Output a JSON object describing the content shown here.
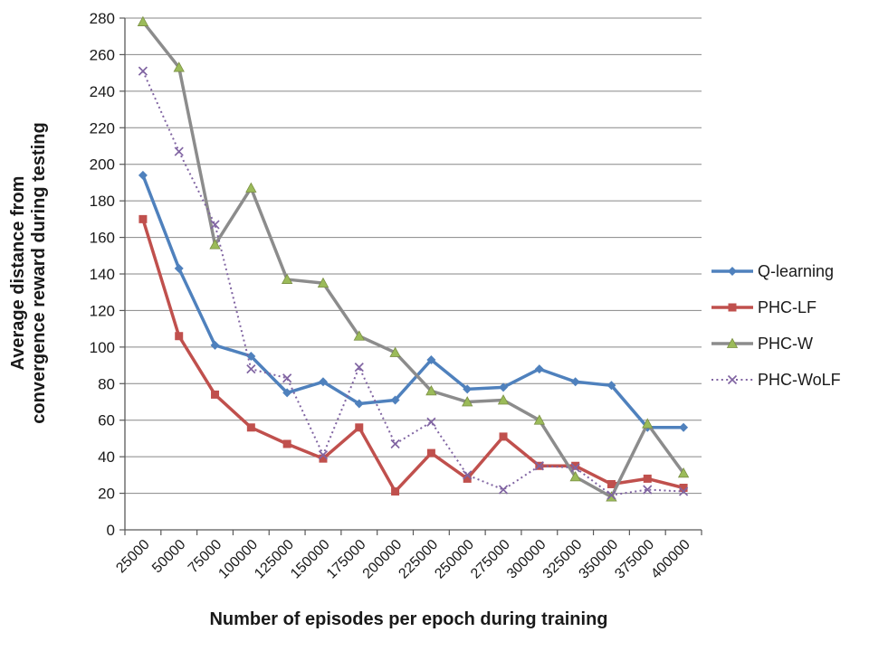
{
  "chart_data": {
    "type": "line",
    "title": "",
    "xlabel": "Number of episodes per epoch during training",
    "ylabel": "Average distance from convergence reward during testing",
    "ylabel_line1": "Average distance from",
    "ylabel_line2": "convergence reward during testing",
    "x_categories": [
      "25000",
      "50000",
      "75000",
      "100000",
      "125000",
      "150000",
      "175000",
      "200000",
      "225000",
      "250000",
      "275000",
      "300000",
      "325000",
      "350000",
      "375000",
      "400000"
    ],
    "y_tick_labels": [
      "0",
      "20",
      "40",
      "60",
      "80",
      "100",
      "120",
      "140",
      "160",
      "180",
      "200",
      "220",
      "240",
      "260",
      "280"
    ],
    "ylim": [
      0,
      280
    ],
    "ytick_step": 20,
    "grid": "horizontal",
    "legend_position": "right",
    "series": [
      {
        "name": "Q-learning",
        "color": "#4F81BD",
        "marker": "diamond",
        "line_style": "solid",
        "values": [
          194,
          143,
          101,
          95,
          75,
          81,
          69,
          71,
          93,
          77,
          78,
          88,
          81,
          79,
          56,
          56
        ]
      },
      {
        "name": "PHC-LF",
        "color": "#C0504D",
        "marker": "square",
        "line_style": "solid",
        "values": [
          170,
          106,
          74,
          56,
          47,
          39,
          56,
          21,
          42,
          28,
          51,
          35,
          35,
          25,
          28,
          23
        ]
      },
      {
        "name": "PHC-W",
        "color": "#8C8C8C",
        "marker": "triangle",
        "marker_color": "#9BBB59",
        "marker_edge": "#7A8F43",
        "line_style": "solid",
        "values": [
          278,
          253,
          156,
          187,
          137,
          135,
          106,
          97,
          76,
          70,
          71,
          60,
          29,
          18,
          58,
          31
        ]
      },
      {
        "name": "PHC-WoLF",
        "color": "#8064A2",
        "marker": "x",
        "line_style": "dotted",
        "values": [
          251,
          207,
          167,
          88,
          83,
          41,
          89,
          47,
          59,
          30,
          22,
          35,
          34,
          19,
          22,
          21
        ]
      }
    ]
  },
  "style": {
    "grid_color": "#878787",
    "axis_color": "#595959",
    "text_color": "#1a1a1a",
    "background": "#ffffff"
  }
}
